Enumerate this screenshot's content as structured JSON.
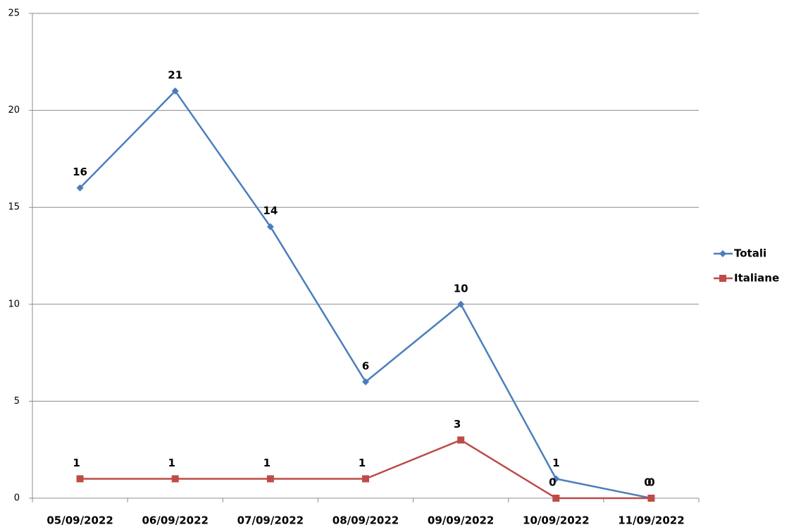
{
  "chart_data": {
    "type": "line",
    "categories": [
      "05/09/2022",
      "06/09/2022",
      "07/09/2022",
      "08/09/2022",
      "09/09/2022",
      "10/09/2022",
      "11/09/2022"
    ],
    "series": [
      {
        "name": "Totali",
        "color": "#4a7ebb",
        "marker": "diamond",
        "values": [
          16,
          21,
          14,
          6,
          10,
          1,
          0
        ]
      },
      {
        "name": "Italiane",
        "color": "#be4b48",
        "marker": "square",
        "values": [
          1,
          1,
          1,
          1,
          3,
          0,
          0
        ]
      }
    ],
    "ylim": [
      0,
      25
    ],
    "yticks": [
      0,
      5,
      10,
      15,
      20,
      25
    ],
    "grid": true,
    "legend": "right",
    "data_labels": true
  }
}
